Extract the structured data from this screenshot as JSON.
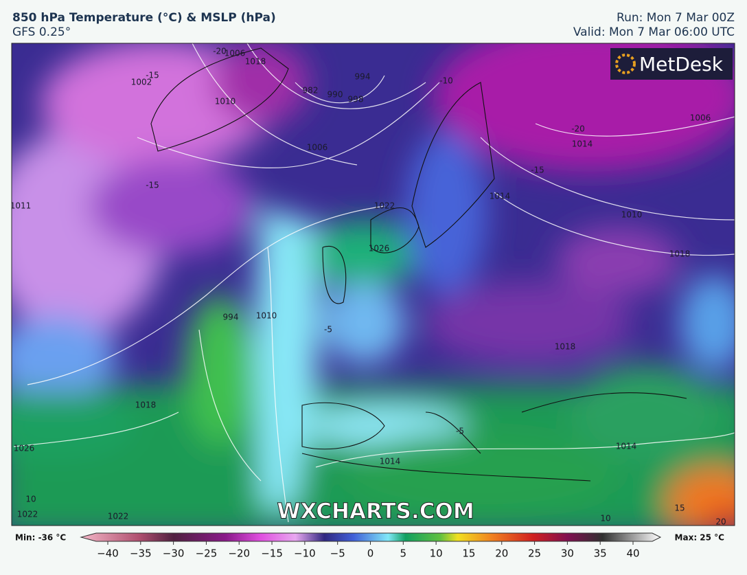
{
  "header": {
    "title": "850 hPa Temperature (°C) & MSLP (hPa)",
    "subtitle": "GFS 0.25°",
    "run": "Run: Mon 7 Mar 00Z",
    "valid": "Valid: Mon 7 Mar 06:00 UTC"
  },
  "branding": {
    "logo": "MetDesk",
    "watermark": "WXCHARTS.COM"
  },
  "map_labels": [
    "-20",
    "1006",
    "1018",
    "-15",
    "1002",
    "1010",
    "982",
    "990",
    "994",
    "998",
    "-10",
    "1006",
    "-15",
    "-20",
    "1014",
    "1006",
    "1011",
    "1010",
    "1018",
    "-15",
    "1014",
    "1022",
    "1026",
    "-5",
    "994",
    "1010",
    "1018",
    "1018",
    "-5",
    "1014",
    "1014",
    "1026",
    "10",
    "1022",
    "1022",
    "10",
    "15",
    "20"
  ],
  "colorbar": {
    "min_label": "Min: -36 °C",
    "max_label": "Max: 25 °C",
    "ticks": [
      {
        "value": -40,
        "label": "−40"
      },
      {
        "value": -35,
        "label": "−35"
      },
      {
        "value": -30,
        "label": "−30"
      },
      {
        "value": -25,
        "label": "−25"
      },
      {
        "value": -20,
        "label": "−20"
      },
      {
        "value": -15,
        "label": "−15"
      },
      {
        "value": -10,
        "label": "−10"
      },
      {
        "value": -5,
        "label": "−5"
      },
      0,
      5,
      10,
      15,
      20,
      25,
      30,
      35,
      40
    ]
  }
}
